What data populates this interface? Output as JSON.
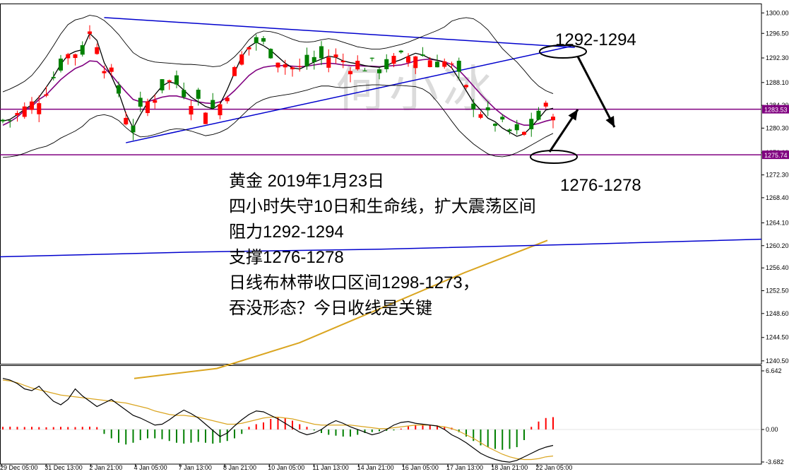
{
  "chart_data": [
    {
      "type": "candlestick",
      "title": "",
      "ylim": [
        1240,
        1301
      ],
      "y_ticks": [
        "1300.00",
        "1296.50",
        "1292.30",
        "1288.10",
        "1284.20",
        "1280.30",
        "1276.10",
        "1272.30",
        "1268.40",
        "1264.10",
        "1260.20",
        "1256.40",
        "1252.50",
        "1248.60",
        "1244.50",
        "1240.50"
      ],
      "price_tags": [
        "1283.53",
        "1275.74"
      ],
      "x_ticks": [
        "29 Dec 05:00",
        "31 Dec 13:00",
        "2 Jan 21:00",
        "4 Jan 05:00",
        "7 Jan 13:00",
        "8 Jan 21:00",
        "10 Jan 05:00",
        "11 Jan 13:00",
        "14 Jan 21:00",
        "16 Jan 05:00",
        "17 Jan 13:00",
        "18 Jan 21:00",
        "22 Jan 05:00"
      ],
      "series": [
        {
          "values": [
            1281.5,
            1281.8,
            1282.6,
            1283.5,
            1284.3,
            1285.6,
            1287.3,
            1289.1,
            1291.2,
            1292.8,
            1293.4,
            1293.7,
            1296.5,
            1295.3,
            1291.5,
            1289.2,
            1286.4,
            1282.8,
            1280.3,
            1282.6,
            1284.7,
            1286.0,
            1287.5,
            1288.2,
            1287.9,
            1286.8,
            1285.6,
            1284.8,
            1284.0,
            1283.6,
            1284.4,
            1286.9,
            1289.8,
            1292.5,
            1294.2,
            1295.0,
            1294.4,
            1293.6,
            1292.5,
            1291.4,
            1290.6,
            1290.4,
            1291.0,
            1291.6,
            1292.1,
            1292.6,
            1292.4,
            1291.8,
            1291.5,
            1291.3,
            1291.0,
            1290.8,
            1290.7,
            1291.0,
            1291.6,
            1292.0,
            1292.6,
            1293.1,
            1292.8,
            1292.2,
            1291.9,
            1291.6,
            1290.6,
            1288.7,
            1286.7,
            1284.7,
            1283.4,
            1282.0,
            1281.4,
            1280.3,
            1279.6,
            1278.9,
            1279.3,
            1280.5,
            1281.9,
            1283.4,
            1283.7
          ]
        },
        {
          "values": [
            1280.8,
            1281.4,
            1282.2,
            1283.3,
            1284.0,
            1285.2,
            1286.0,
            1287.3,
            1288.6,
            1289.6,
            1290.5,
            1291.0,
            1291.8,
            1291.7,
            1290.6,
            1289.4,
            1287.9,
            1286.5,
            1285.2,
            1284.8,
            1284.8,
            1285.2,
            1285.6,
            1285.8,
            1285.8,
            1285.5,
            1285.1,
            1284.8,
            1284.6,
            1284.5,
            1284.8,
            1285.6,
            1286.7,
            1288.0,
            1289.3,
            1290.2,
            1290.7,
            1290.9,
            1291.0,
            1291.0,
            1290.9,
            1290.8,
            1290.9,
            1291.1,
            1291.3,
            1291.4,
            1291.3,
            1291.1,
            1291.0,
            1291.0,
            1290.9,
            1290.9,
            1290.8,
            1290.9,
            1291.0,
            1291.1,
            1291.4,
            1291.8,
            1292.0,
            1292.1,
            1291.9,
            1291.6,
            1291.2,
            1290.2,
            1288.9,
            1287.5,
            1286.1,
            1284.8,
            1283.6,
            1282.6,
            1281.8,
            1281.2,
            1280.8,
            1280.8,
            1281.1,
            1281.5,
            1281.8
          ]
        },
        {
          "values": [
            1286.5,
            1287.0,
            1287.6,
            1288.3,
            1289.3,
            1290.8,
            1292.5,
            1294.4,
            1296.4,
            1298.0,
            1298.8,
            1299.1,
            1299.6,
            1299.4,
            1298.7,
            1297.6,
            1296.3,
            1294.7,
            1293.2,
            1292.4,
            1291.9,
            1291.6,
            1291.5,
            1291.4,
            1291.3,
            1291.2,
            1291.2,
            1291.1,
            1291.0,
            1290.8,
            1290.9,
            1291.5,
            1292.5,
            1293.8,
            1295.4,
            1296.5,
            1296.9,
            1296.8,
            1296.5,
            1296.0,
            1295.5,
            1295.1,
            1295.0,
            1295.1,
            1295.4,
            1295.6,
            1295.4,
            1295.0,
            1294.6,
            1294.2,
            1294.0,
            1293.8,
            1293.8,
            1294.0,
            1294.3,
            1294.6,
            1295.0,
            1295.5,
            1296.0,
            1296.5,
            1297.0,
            1297.6,
            1298.6,
            1299.0,
            1299.2,
            1299.0,
            1298.2,
            1297.1,
            1295.5,
            1293.9,
            1292.7,
            1291.6,
            1290.2,
            1288.7,
            1287.5,
            1286.7,
            1286.2
          ]
        },
        {
          "values": [
            1275.3,
            1275.4,
            1275.6,
            1276.0,
            1276.5,
            1276.9,
            1277.2,
            1277.8,
            1278.6,
            1279.2,
            1279.8,
            1280.6,
            1281.8,
            1282.4,
            1282.6,
            1282.3,
            1281.6,
            1280.4,
            1279.4,
            1278.8,
            1278.9,
            1279.2,
            1279.6,
            1280.0,
            1280.2,
            1280.1,
            1279.8,
            1279.4,
            1279.0,
            1279.2,
            1279.6,
            1280.2,
            1281.2,
            1282.4,
            1283.6,
            1284.6,
            1285.2,
            1285.6,
            1285.8,
            1286.0,
            1286.2,
            1286.5,
            1286.8,
            1287.2,
            1287.5,
            1287.5,
            1287.3,
            1287.2,
            1287.3,
            1287.5,
            1287.6,
            1287.7,
            1287.7,
            1287.6,
            1287.6,
            1287.6,
            1287.5,
            1287.4,
            1287.0,
            1286.2,
            1284.8,
            1283.2,
            1281.5,
            1279.9,
            1278.7,
            1277.6,
            1276.7,
            1275.9,
            1275.5,
            1275.4,
            1275.6,
            1276.1,
            1276.7,
            1277.4,
            1278.1,
            1278.8,
            1279.4
          ]
        }
      ],
      "lines": [
        {
          "values": [
            1258.3,
            1259.1,
            1259.6,
            1260.4,
            1261.3
          ]
        },
        {
          "values": [
            1237.5,
            1239.2,
            1243.6,
            1249.6,
            1255.6,
            1261.1
          ]
        }
      ],
      "annotations": [
        {
          "text": "1292-1294",
          "color": "#000000"
        },
        {
          "text": "1276-1278",
          "color": "#000000"
        },
        {
          "text": "黄金 2019年1月23日",
          "color": "#000000"
        },
        {
          "text": "四小时失守10日和生命线，扩大震荡区间",
          "color": "#000000"
        },
        {
          "text": "阻力1292-1294",
          "color": "#000000"
        },
        {
          "text": "支撑1276-1278",
          "color": "#000000"
        },
        {
          "text": "日线布林带收口区间1298-1273，",
          "color": "#000000"
        },
        {
          "text": "吞没形态？今日收线是关键",
          "color": "#000000"
        }
      ],
      "watermark": "何小冰",
      "colors": {
        "bull": "#ff0000",
        "bear": "#008000",
        "band": "#000000",
        "ma10": "#000000",
        "ma_mid": "#800080",
        "trend": "#0000cd",
        "long_ma": "#daa520",
        "level": "#800080",
        "tag_bg": "#800080"
      }
    },
    {
      "type": "bar",
      "title": "",
      "ylim": [
        -3.682,
        6.642
      ],
      "y_ticks": [
        "6.642",
        "0.00",
        "-3.682"
      ],
      "series": [
        {
          "values": [
            0.3,
            0.32,
            0.3,
            0.28,
            0.3,
            0.27,
            0.25,
            0.27,
            0.3,
            0.28,
            0.27,
            0.3,
            0.32,
            0.27,
            -0.5,
            -1.0,
            -1.5,
            -1.7,
            -1.5,
            -1.2,
            -1.0,
            -1.0,
            -1.1,
            -1.3,
            -1.5,
            -1.6,
            -1.5,
            -1.4,
            -1.5,
            -1.6,
            -1.5,
            -1.3,
            -1.0,
            -0.5,
            0.3,
            0.6,
            0.8,
            1.2,
            1.4,
            1.3,
            1.0,
            0.6,
            0.3,
            -0.1,
            -0.4,
            -0.6,
            -0.7,
            -0.8,
            -0.8,
            -0.6,
            -0.4,
            -0.3,
            -0.2,
            -0.15,
            -0.1,
            0.1,
            0.35,
            0.5,
            0.55,
            0.5,
            0.45,
            0.35,
            0.2,
            -0.3,
            -0.8,
            -1.3,
            -1.8,
            -2.0,
            -2.2,
            -2.3,
            -2.2,
            -2.0,
            -1.2,
            0.3,
            0.9,
            1.3,
            1.4
          ]
        },
        {
          "values": [
            5.8,
            5.6,
            5.2,
            4.6,
            4.4,
            4.9,
            4.0,
            3.2,
            2.8,
            3.4,
            4.6,
            3.8,
            3.2,
            2.6,
            3.0,
            3.4,
            2.8,
            2.2,
            1.6,
            1.3,
            0.9,
            0.5,
            0.6,
            1.1,
            1.7,
            2.2,
            1.8,
            1.3,
            0.6,
            -0.1,
            -0.8,
            -0.4,
            0.4,
            1.1,
            1.7,
            2.1,
            2.0,
            1.6,
            1.2,
            0.7,
            0.2,
            -0.3,
            -0.6,
            -0.4,
            0.0,
            0.6,
            1.0,
            0.7,
            0.3,
            0.0,
            -0.3,
            -0.6,
            -0.4,
            0.0,
            0.5,
            0.8,
            0.9,
            0.7,
            0.6,
            0.5,
            0.4,
            0.0,
            -0.6,
            -1.0,
            -1.5,
            -2.1,
            -2.7,
            -3.1,
            -3.4,
            -3.6,
            -3.7,
            -3.5,
            -3.1,
            -2.7,
            -2.3,
            -2.0,
            -1.8
          ]
        },
        {
          "values": [
            5.6,
            5.5,
            5.3,
            5.0,
            4.7,
            4.5,
            4.3,
            4.1,
            3.9,
            3.8,
            3.7,
            3.6,
            3.5,
            3.4,
            3.3,
            3.2,
            3.1,
            3.0,
            2.8,
            2.6,
            2.4,
            2.1,
            1.9,
            1.7,
            1.6,
            1.6,
            1.5,
            1.4,
            1.2,
            1.0,
            0.8,
            0.6,
            0.6,
            0.7,
            0.9,
            1.1,
            1.3,
            1.4,
            1.4,
            1.3,
            1.2,
            1.0,
            0.8,
            0.6,
            0.5,
            0.5,
            0.5,
            0.5,
            0.5,
            0.4,
            0.3,
            0.2,
            0.1,
            0.1,
            0.2,
            0.3,
            0.4,
            0.5,
            0.5,
            0.5,
            0.4,
            0.3,
            0.1,
            -0.2,
            -0.6,
            -1.0,
            -1.5,
            -2.0,
            -2.4,
            -2.8,
            -3.1,
            -3.3,
            -3.4,
            -3.4,
            -3.3,
            -3.1,
            -3.0
          ]
        }
      ],
      "colors": {
        "pos": "#ff0000",
        "neg": "#008000",
        "fast": "#000000",
        "slow": "#daa520"
      }
    }
  ]
}
